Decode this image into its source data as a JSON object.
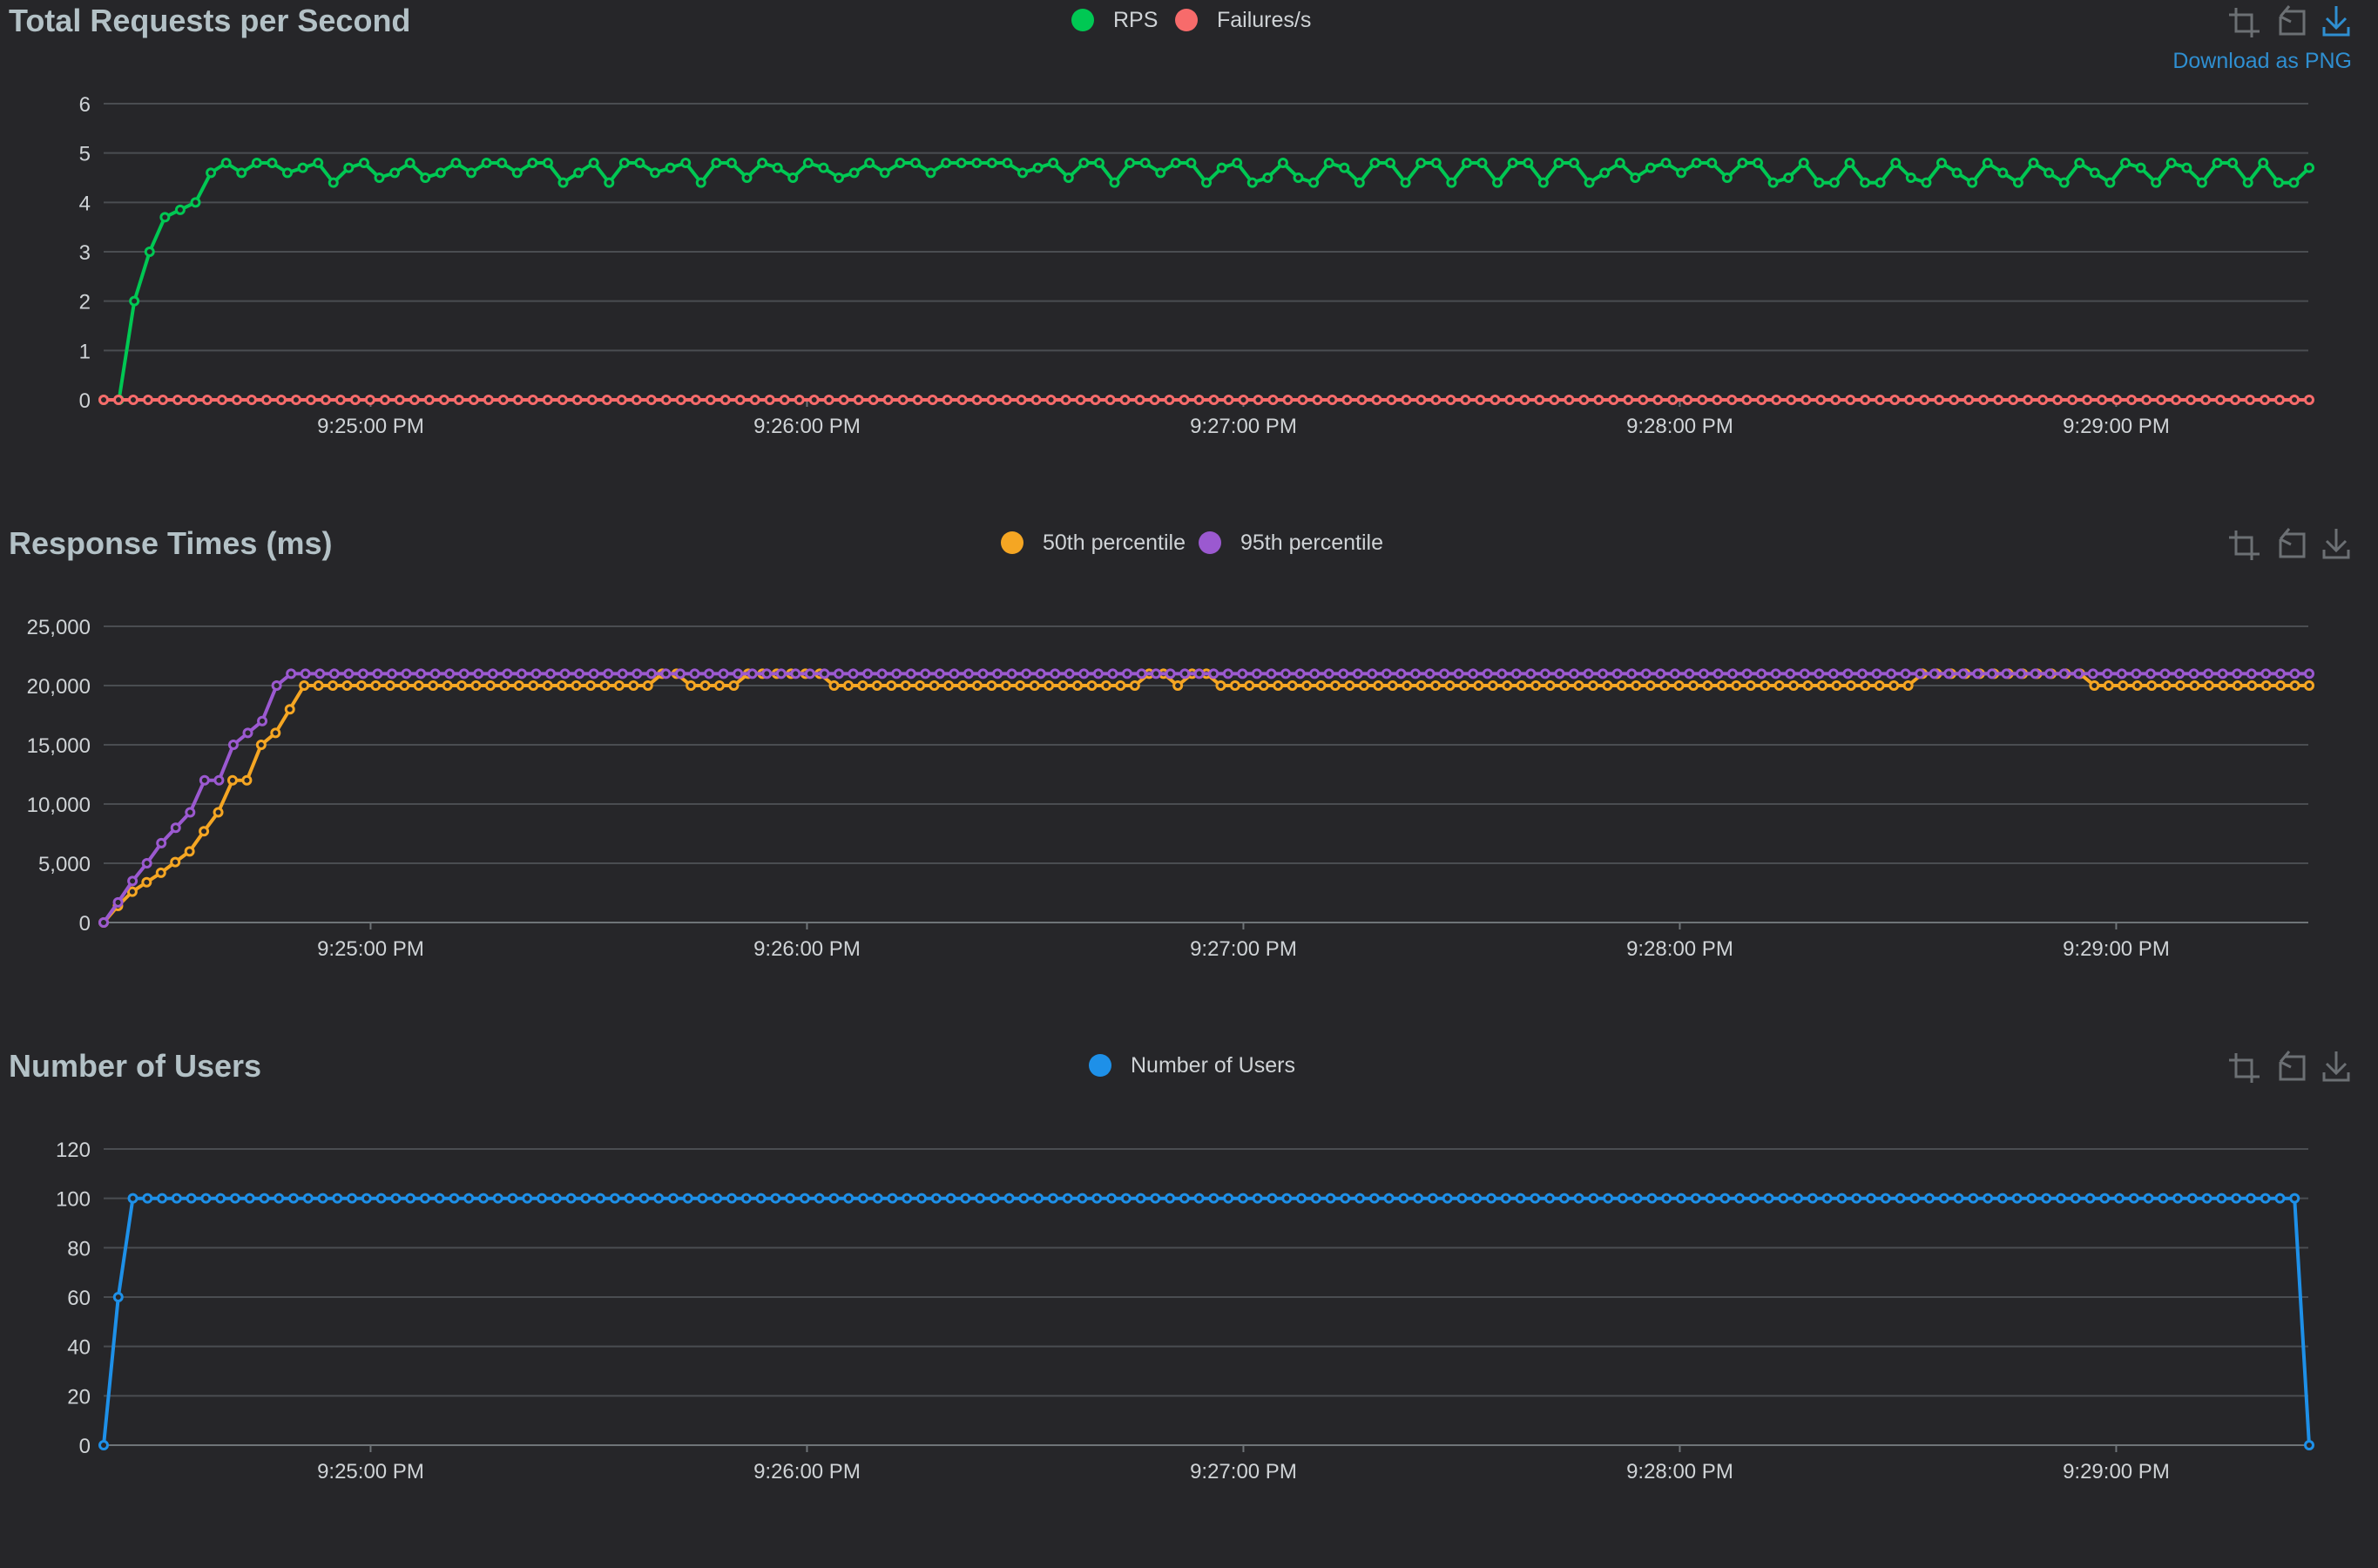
{
  "toolbar": {
    "download_tooltip": "Download as PNG"
  },
  "time_labels": [
    "9:25:00 PM",
    "9:26:00 PM",
    "9:27:00 PM",
    "9:28:00 PM",
    "9:29:00 PM"
  ],
  "chart_data": [
    {
      "type": "line",
      "title": "Total Requests per Second",
      "xlabel": "",
      "ylabel": "",
      "ylim": [
        0,
        6
      ],
      "yticks": [
        "0",
        "1",
        "2",
        "3",
        "4",
        "5",
        "6"
      ],
      "grid": true,
      "legend_position": "top-center",
      "series": [
        {
          "name": "RPS",
          "color": "#00c853",
          "values": [
            0,
            0,
            2,
            3,
            3.7,
            3.85,
            4,
            4.6,
            4.8,
            4.6,
            4.8,
            4.8,
            4.6,
            4.7,
            4.8,
            4.4,
            4.7,
            4.8,
            4.5,
            4.6,
            4.8,
            4.5,
            4.6,
            4.8,
            4.6,
            4.8,
            4.8,
            4.6,
            4.8,
            4.8,
            4.4,
            4.6,
            4.8,
            4.4,
            4.8,
            4.8,
            4.6,
            4.7,
            4.8,
            4.4,
            4.8,
            4.8,
            4.5,
            4.8,
            4.7,
            4.5,
            4.8,
            4.7,
            4.5,
            4.6,
            4.8,
            4.6,
            4.8,
            4.8,
            4.6,
            4.8,
            4.8,
            4.8,
            4.8,
            4.8,
            4.6,
            4.7,
            4.8,
            4.5,
            4.8,
            4.8,
            4.4,
            4.8,
            4.8,
            4.6,
            4.8,
            4.8,
            4.4,
            4.7,
            4.8,
            4.4,
            4.5,
            4.8,
            4.5,
            4.4,
            4.8,
            4.7,
            4.4,
            4.8,
            4.8,
            4.4,
            4.8,
            4.8,
            4.4,
            4.8,
            4.8,
            4.4,
            4.8,
            4.8,
            4.4,
            4.8,
            4.8,
            4.4,
            4.6,
            4.8,
            4.5,
            4.7,
            4.8,
            4.6,
            4.8,
            4.8,
            4.5,
            4.8,
            4.8,
            4.4,
            4.5,
            4.8,
            4.4,
            4.4,
            4.8,
            4.4,
            4.4,
            4.8,
            4.5,
            4.4,
            4.8,
            4.6,
            4.4,
            4.8,
            4.6,
            4.4,
            4.8,
            4.6,
            4.4,
            4.8,
            4.6,
            4.4,
            4.8,
            4.7,
            4.4,
            4.8,
            4.7,
            4.4,
            4.8,
            4.8,
            4.4,
            4.8,
            4.4,
            4.4,
            4.7
          ]
        },
        {
          "name": "Failures/s",
          "color": "#f76b6b",
          "values": [
            0,
            0,
            0,
            0,
            0,
            0,
            0,
            0,
            0,
            0,
            0,
            0,
            0,
            0,
            0,
            0,
            0,
            0,
            0,
            0,
            0,
            0,
            0,
            0,
            0,
            0,
            0,
            0,
            0,
            0,
            0,
            0,
            0,
            0,
            0,
            0,
            0,
            0,
            0,
            0,
            0,
            0,
            0,
            0,
            0,
            0,
            0,
            0,
            0,
            0,
            0,
            0,
            0,
            0,
            0,
            0,
            0,
            0,
            0,
            0,
            0,
            0,
            0,
            0,
            0,
            0,
            0,
            0,
            0,
            0,
            0,
            0,
            0,
            0,
            0,
            0,
            0,
            0,
            0,
            0,
            0,
            0,
            0,
            0,
            0,
            0,
            0,
            0,
            0,
            0,
            0,
            0,
            0,
            0,
            0,
            0,
            0,
            0,
            0,
            0,
            0,
            0,
            0,
            0,
            0,
            0,
            0,
            0,
            0,
            0,
            0,
            0,
            0,
            0,
            0,
            0,
            0,
            0,
            0,
            0,
            0,
            0,
            0,
            0,
            0,
            0,
            0,
            0,
            0,
            0,
            0,
            0,
            0,
            0,
            0,
            0,
            0,
            0,
            0,
            0,
            0,
            0,
            0,
            0,
            0,
            0,
            0,
            0,
            0,
            0
          ]
        }
      ]
    },
    {
      "type": "line",
      "title": "Response Times (ms)",
      "xlabel": "",
      "ylabel": "",
      "ylim": [
        0,
        25000
      ],
      "yticks": [
        "0",
        "5,000",
        "10,000",
        "15,000",
        "20,000",
        "25,000"
      ],
      "grid": true,
      "legend_position": "top-center",
      "series": [
        {
          "name": "50th percentile",
          "color": "#f5a623",
          "values": [
            0,
            1400,
            2600,
            3400,
            4200,
            5100,
            6000,
            7700,
            9300,
            12000,
            12000,
            15000,
            16000,
            18000,
            20000,
            20000,
            20000,
            20000,
            20000,
            20000,
            20000,
            20000,
            20000,
            20000,
            20000,
            20000,
            20000,
            20000,
            20000,
            20000,
            20000,
            20000,
            20000,
            20000,
            20000,
            20000,
            20000,
            20000,
            20000,
            21000,
            21000,
            20000,
            20000,
            20000,
            20000,
            21000,
            21000,
            21000,
            21000,
            21000,
            21000,
            20000,
            20000,
            20000,
            20000,
            20000,
            20000,
            20000,
            20000,
            20000,
            20000,
            20000,
            20000,
            20000,
            20000,
            20000,
            20000,
            20000,
            20000,
            20000,
            20000,
            20000,
            20000,
            21000,
            21000,
            20000,
            21000,
            21000,
            20000,
            20000,
            20000,
            20000,
            20000,
            20000,
            20000,
            20000,
            20000,
            20000,
            20000,
            20000,
            20000,
            20000,
            20000,
            20000,
            20000,
            20000,
            20000,
            20000,
            20000,
            20000,
            20000,
            20000,
            20000,
            20000,
            20000,
            20000,
            20000,
            20000,
            20000,
            20000,
            20000,
            20000,
            20000,
            20000,
            20000,
            20000,
            20000,
            20000,
            20000,
            20000,
            20000,
            20000,
            20000,
            20000,
            20000,
            20000,
            20000,
            21000,
            21000,
            21000,
            21000,
            21000,
            21000,
            21000,
            21000,
            21000,
            21000,
            21000,
            21000,
            20000,
            20000,
            20000,
            20000,
            20000,
            20000,
            20000,
            20000,
            20000,
            20000,
            20000,
            20000,
            20000,
            20000,
            20000,
            20000
          ]
        },
        {
          "name": "95th percentile",
          "color": "#9b59d0",
          "values": [
            0,
            1700,
            3500,
            5000,
            6700,
            8000,
            9300,
            12000,
            12000,
            15000,
            16000,
            17000,
            20000,
            21000,
            21000,
            21000,
            21000,
            21000,
            21000,
            21000,
            21000,
            21000,
            21000,
            21000,
            21000,
            21000,
            21000,
            21000,
            21000,
            21000,
            21000,
            21000,
            21000,
            21000,
            21000,
            21000,
            21000,
            21000,
            21000,
            21000,
            21000,
            21000,
            21000,
            21000,
            21000,
            21000,
            21000,
            21000,
            21000,
            21000,
            21000,
            21000,
            21000,
            21000,
            21000,
            21000,
            21000,
            21000,
            21000,
            21000,
            21000,
            21000,
            21000,
            21000,
            21000,
            21000,
            21000,
            21000,
            21000,
            21000,
            21000,
            21000,
            21000,
            21000,
            21000,
            21000,
            21000,
            21000,
            21000,
            21000,
            21000,
            21000,
            21000,
            21000,
            21000,
            21000,
            21000,
            21000,
            21000,
            21000,
            21000,
            21000,
            21000,
            21000,
            21000,
            21000,
            21000,
            21000,
            21000,
            21000,
            21000,
            21000,
            21000,
            21000,
            21000,
            21000,
            21000,
            21000,
            21000,
            21000,
            21000,
            21000,
            21000,
            21000,
            21000,
            21000,
            21000,
            21000,
            21000,
            21000,
            21000,
            21000,
            21000,
            21000,
            21000,
            21000,
            21000,
            21000,
            21000,
            21000,
            21000,
            21000,
            21000,
            21000,
            21000,
            21000,
            21000,
            21000,
            21000,
            21000,
            21000,
            21000,
            21000,
            21000,
            21000,
            21000,
            21000,
            21000,
            21000,
            21000,
            21000,
            21000,
            21000,
            21000
          ]
        }
      ]
    },
    {
      "type": "line",
      "title": "Number of Users",
      "xlabel": "",
      "ylabel": "",
      "ylim": [
        0,
        120
      ],
      "yticks": [
        "0",
        "20",
        "40",
        "60",
        "80",
        "100",
        "120"
      ],
      "grid": true,
      "legend_position": "top-center",
      "series": [
        {
          "name": "Number of Users",
          "color": "#1e90e8",
          "values": [
            0,
            60,
            100,
            100,
            100,
            100,
            100,
            100,
            100,
            100,
            100,
            100,
            100,
            100,
            100,
            100,
            100,
            100,
            100,
            100,
            100,
            100,
            100,
            100,
            100,
            100,
            100,
            100,
            100,
            100,
            100,
            100,
            100,
            100,
            100,
            100,
            100,
            100,
            100,
            100,
            100,
            100,
            100,
            100,
            100,
            100,
            100,
            100,
            100,
            100,
            100,
            100,
            100,
            100,
            100,
            100,
            100,
            100,
            100,
            100,
            100,
            100,
            100,
            100,
            100,
            100,
            100,
            100,
            100,
            100,
            100,
            100,
            100,
            100,
            100,
            100,
            100,
            100,
            100,
            100,
            100,
            100,
            100,
            100,
            100,
            100,
            100,
            100,
            100,
            100,
            100,
            100,
            100,
            100,
            100,
            100,
            100,
            100,
            100,
            100,
            100,
            100,
            100,
            100,
            100,
            100,
            100,
            100,
            100,
            100,
            100,
            100,
            100,
            100,
            100,
            100,
            100,
            100,
            100,
            100,
            100,
            100,
            100,
            100,
            100,
            100,
            100,
            100,
            100,
            100,
            100,
            100,
            100,
            100,
            100,
            100,
            100,
            100,
            100,
            100,
            100,
            100,
            100,
            100,
            100,
            100,
            100,
            100,
            100,
            100,
            100,
            0
          ]
        }
      ]
    }
  ]
}
